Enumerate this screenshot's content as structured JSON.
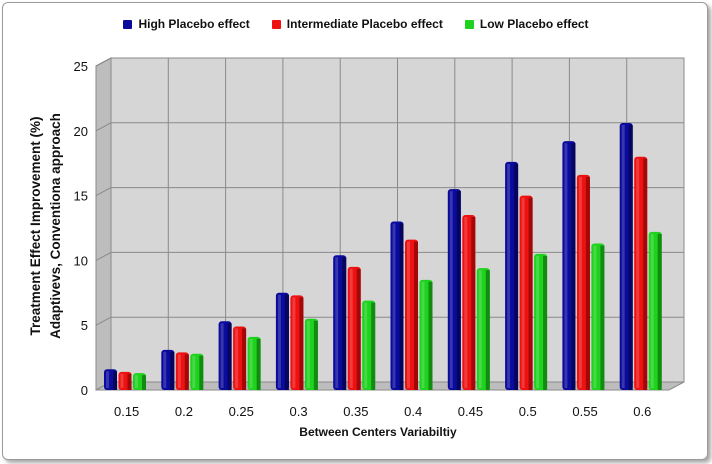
{
  "chart_data": {
    "type": "bar",
    "title": "",
    "xlabel": "Between Centers Variabiltiy",
    "ylabel_lines": [
      "Treatment Effect Improvement (%)",
      "Adaptivevs, Conventiona approach"
    ],
    "categories": [
      "0.15",
      "0.2",
      "0.25",
      "0.3",
      "0.35",
      "0.4",
      "0.45",
      "0.5",
      "0.55",
      "0.6"
    ],
    "series": [
      {
        "name": "High Placebo effect",
        "color": "#0a0a9c",
        "values": [
          1.6,
          3.1,
          5.3,
          7.5,
          10.4,
          13.0,
          15.5,
          17.6,
          19.2,
          20.6
        ]
      },
      {
        "name": "Intermediate Placebo effect",
        "color": "#ee1111",
        "values": [
          1.4,
          2.9,
          4.9,
          7.3,
          9.5,
          11.6,
          13.5,
          15.0,
          16.6,
          18.0
        ]
      },
      {
        "name": "Low Placebo effect",
        "color": "#1ed21e",
        "values": [
          1.3,
          2.8,
          4.1,
          5.5,
          6.9,
          8.5,
          9.4,
          10.5,
          11.3,
          12.2
        ]
      }
    ],
    "yticks": [
      "0",
      "5",
      "10",
      "15",
      "20",
      "25"
    ],
    "ylim": [
      0,
      25
    ],
    "grid": true,
    "legend_position": "top"
  }
}
